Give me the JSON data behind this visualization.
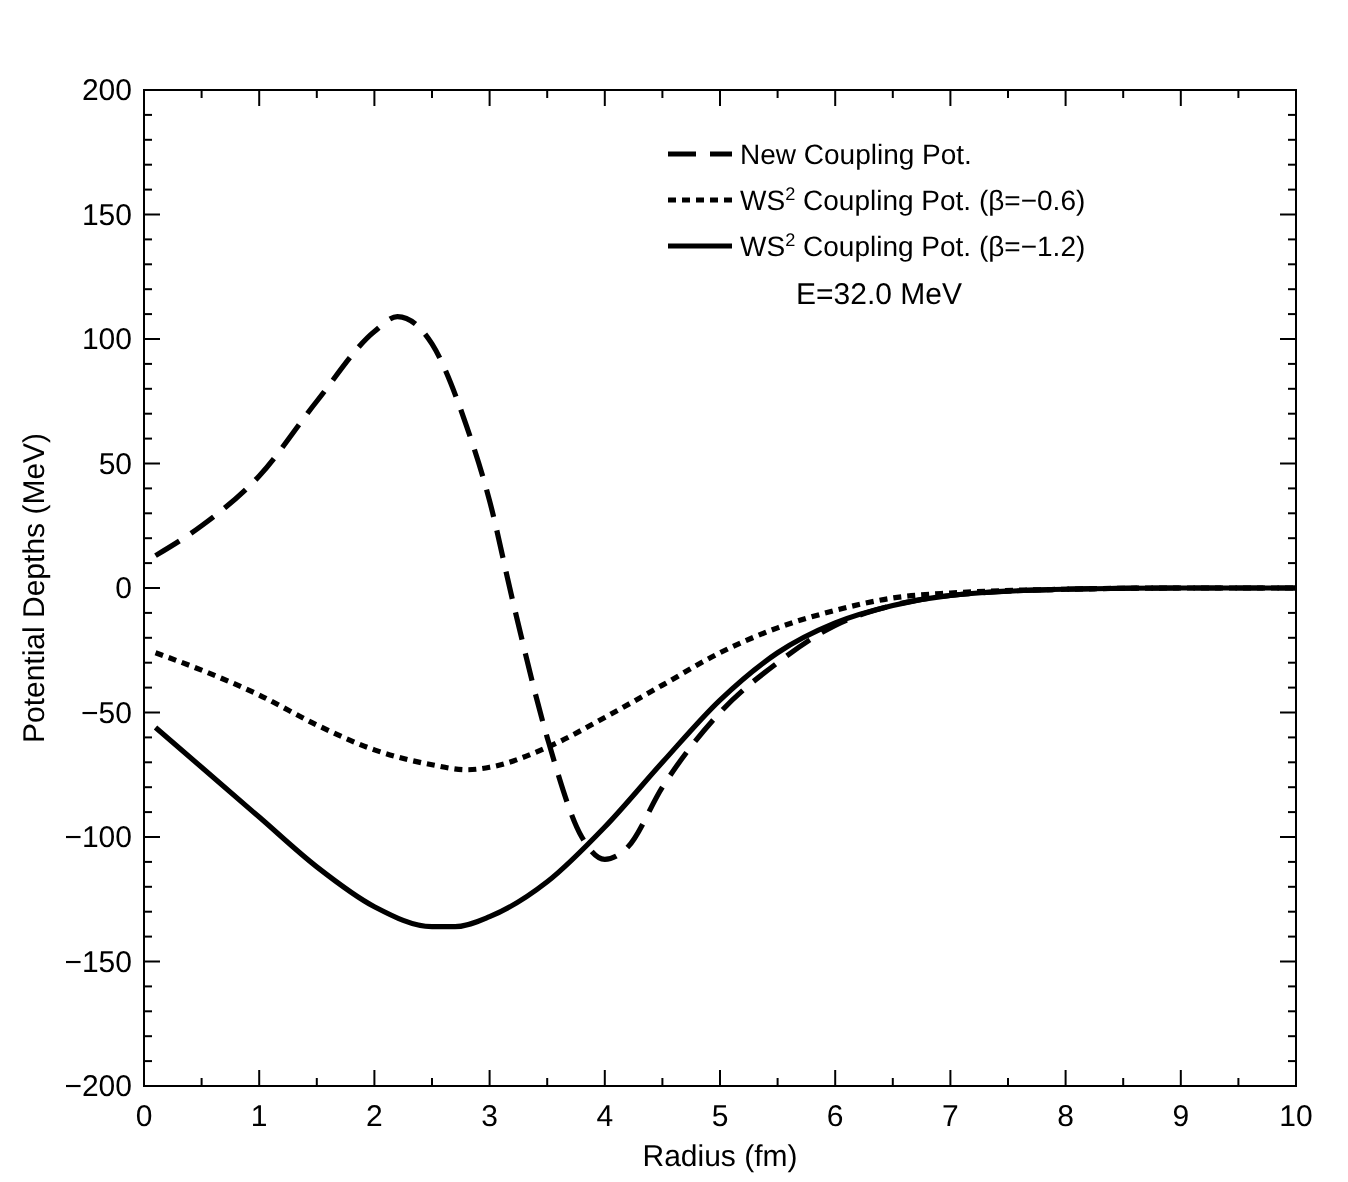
{
  "chart_data": {
    "type": "line",
    "xlabel": "Radius (fm)",
    "ylabel": "Potential Depths (MeV)",
    "xlim": [
      0,
      10
    ],
    "ylim": [
      -200,
      200
    ],
    "xticks": [
      0,
      {
        "value": 0.5,
        "label": null
      },
      1,
      {
        "value": 1.5,
        "label": null
      },
      2,
      {
        "value": 2.5,
        "label": null
      },
      3,
      {
        "value": 3.5,
        "label": null
      },
      4,
      {
        "value": 4.5,
        "label": null
      },
      5,
      {
        "value": 5.5,
        "label": null
      },
      6,
      {
        "value": 6.5,
        "label": null
      },
      7,
      {
        "value": 7.5,
        "label": null
      },
      8,
      {
        "value": 8.5,
        "label": null
      },
      9,
      {
        "value": 9.5,
        "label": null
      },
      10
    ],
    "yticks": [
      -200,
      {
        "value": -190,
        "label": null
      },
      {
        "value": -180,
        "label": null
      },
      {
        "value": -170,
        "label": null
      },
      {
        "value": -160,
        "label": null
      },
      -150,
      {
        "value": -140,
        "label": null
      },
      {
        "value": -130,
        "label": null
      },
      {
        "value": -120,
        "label": null
      },
      {
        "value": -110,
        "label": null
      },
      -100,
      {
        "value": -90,
        "label": null
      },
      {
        "value": -80,
        "label": null
      },
      {
        "value": -70,
        "label": null
      },
      {
        "value": -60,
        "label": null
      },
      -50,
      {
        "value": -40,
        "label": null
      },
      {
        "value": -30,
        "label": null
      },
      {
        "value": -20,
        "label": null
      },
      {
        "value": -10,
        "label": null
      },
      0,
      {
        "value": 10,
        "label": null
      },
      {
        "value": 20,
        "label": null
      },
      {
        "value": 30,
        "label": null
      },
      {
        "value": 40,
        "label": null
      },
      50,
      {
        "value": 60,
        "label": null
      },
      {
        "value": 70,
        "label": null
      },
      {
        "value": 80,
        "label": null
      },
      {
        "value": 90,
        "label": null
      },
      100,
      {
        "value": 110,
        "label": null
      },
      {
        "value": 120,
        "label": null
      },
      {
        "value": 130,
        "label": null
      },
      {
        "value": 140,
        "label": null
      },
      150,
      {
        "value": 160,
        "label": null
      },
      {
        "value": 170,
        "label": null
      },
      {
        "value": 180,
        "label": null
      },
      {
        "value": 190,
        "label": null
      },
      200
    ],
    "grid": false,
    "legend": "top right",
    "marker": "none",
    "annotations": [
      "E=32.0 MeV"
    ],
    "series": [
      {
        "name": "New Coupling Pot.",
        "color": "#000000",
        "line_style": "dashed",
        "x": [
          0.1,
          0.5,
          1,
          1.5,
          2,
          2.2,
          2.5,
          2.8,
          3,
          3.2,
          3.5,
          3.8,
          4,
          4.2,
          4.5,
          5,
          5.5,
          6,
          6.5,
          7,
          8,
          9,
          10
        ],
        "values": [
          13,
          25,
          45,
          75,
          103,
          109,
          98,
          65,
          35,
          -5,
          -60,
          -100,
          -109,
          -104,
          -80,
          -50,
          -30,
          -15,
          -7,
          -3,
          -0.5,
          0,
          0
        ]
      },
      {
        "name": "WS$^{2}$ Coupling Pot. (β=−0.6)",
        "color": "#000000",
        "line_style": "dotted",
        "x": [
          0.1,
          0.5,
          1,
          1.5,
          2,
          2.5,
          2.8,
          3,
          3.5,
          4,
          4.5,
          5,
          5.5,
          6,
          6.5,
          7,
          8,
          9,
          10
        ],
        "values": [
          -26,
          -33,
          -43,
          -55,
          -65,
          -71,
          -73,
          -72,
          -64,
          -52,
          -39,
          -26,
          -16,
          -9,
          -4,
          -2,
          -0.5,
          0,
          0
        ]
      },
      {
        "name": "WS$^{2}$ Coupling Pot. (β=−1.2)",
        "color": "#000000",
        "line_style": "solid",
        "x": [
          0.1,
          0.5,
          1,
          1.5,
          2,
          2.5,
          2.7,
          3,
          3.5,
          4,
          4.5,
          5,
          5.5,
          6,
          6.5,
          7,
          8,
          9,
          10
        ],
        "values": [
          -56,
          -72,
          -92,
          -112,
          -128,
          -136,
          -136,
          -132,
          -118,
          -96,
          -70,
          -45,
          -26,
          -14,
          -7,
          -3,
          -0.5,
          0,
          0
        ]
      }
    ]
  }
}
